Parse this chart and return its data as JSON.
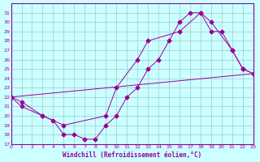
{
  "xlabel": "Windchill (Refroidissement éolien,°C)",
  "xlim": [
    0,
    23
  ],
  "ylim": [
    17,
    32
  ],
  "yticks": [
    17,
    18,
    19,
    20,
    21,
    22,
    23,
    24,
    25,
    26,
    27,
    28,
    29,
    30,
    31
  ],
  "xticks": [
    0,
    1,
    2,
    3,
    4,
    5,
    6,
    7,
    8,
    9,
    10,
    11,
    12,
    13,
    14,
    15,
    16,
    17,
    18,
    19,
    20,
    21,
    22,
    23
  ],
  "color": "#990099",
  "bg_color": "#ccffff",
  "grid_color": "#99cccc",
  "line1_x": [
    0,
    1,
    3,
    4,
    5,
    6,
    7,
    8,
    9,
    10,
    11,
    12,
    13,
    14,
    15,
    16,
    17,
    18,
    19,
    20,
    21,
    22,
    23
  ],
  "line1_y": [
    22,
    21,
    20,
    19.5,
    18,
    18,
    17.5,
    17.5,
    19,
    20,
    22,
    23,
    25,
    26,
    28,
    30,
    31,
    31,
    29,
    29,
    27,
    25,
    24.5
  ],
  "line2_x": [
    0,
    1,
    3,
    5,
    9,
    10,
    12,
    13,
    16,
    18,
    19,
    21,
    22,
    23
  ],
  "line2_y": [
    22,
    21.5,
    20,
    19,
    20,
    23,
    26,
    28,
    29,
    31,
    30,
    27,
    25,
    24.5
  ],
  "line3_x": [
    0,
    23
  ],
  "line3_y": [
    22,
    24.5
  ],
  "marker": "D",
  "markersize": 2.5
}
